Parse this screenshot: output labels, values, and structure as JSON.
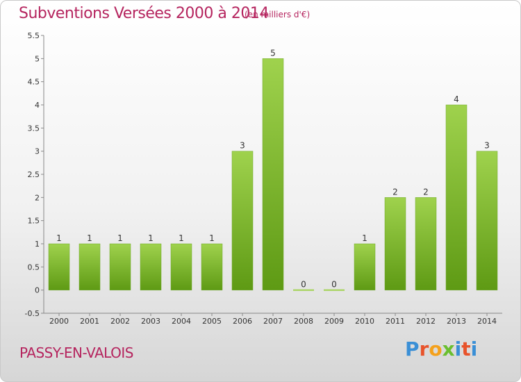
{
  "header": {
    "title": "Subventions Versées 2000 à 2014",
    "subtitle": "(en milliers d'€)"
  },
  "footer": {
    "place": "PASSY-EN-VALOIS",
    "logo_letters": [
      "P",
      "r",
      "o",
      "x",
      "i",
      "t",
      "i"
    ],
    "logo_colors": [
      "#3a8fd6",
      "#e8532b",
      "#f4a11c",
      "#6abf2f",
      "#3a8fd6",
      "#e8532b",
      "#3a8fd6"
    ]
  },
  "colors": {
    "title": "#b5245e",
    "bar_light": "#9fd24d",
    "bar_dark": "#5e9a14"
  },
  "chart_data": {
    "type": "bar",
    "categories": [
      "2000",
      "2001",
      "2002",
      "2003",
      "2004",
      "2005",
      "2006",
      "2007",
      "2008",
      "2009",
      "2010",
      "2011",
      "2012",
      "2013",
      "2014"
    ],
    "values": [
      1,
      1,
      1,
      1,
      1,
      1,
      3,
      5,
      0,
      0,
      1,
      2,
      2,
      4,
      3
    ],
    "data_labels": [
      "1",
      "1",
      "1",
      "1",
      "1",
      "1",
      "3",
      "5",
      "0",
      "0",
      "1",
      "2",
      "2",
      "4",
      "3"
    ],
    "y_ticks": [
      "-0.5",
      "0",
      "0.5",
      "1",
      "1.5",
      "2",
      "2.5",
      "3",
      "3.5",
      "4",
      "4.5",
      "5",
      "5.5"
    ],
    "ylim": [
      -0.5,
      5.5
    ],
    "grid": false
  }
}
